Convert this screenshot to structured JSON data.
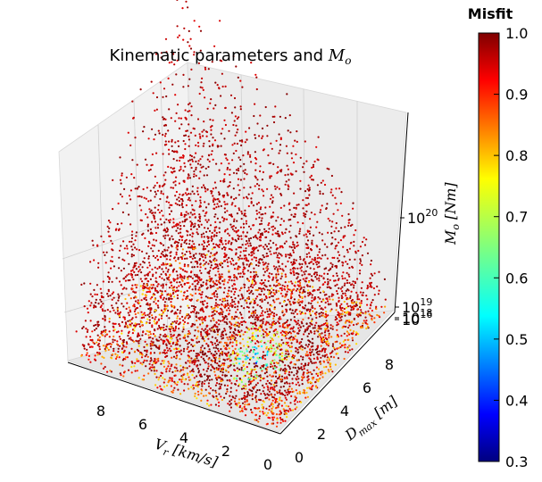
{
  "chart_data": {
    "type": "scatter",
    "projection": "3d",
    "title": {
      "prefix": "Kinematic parameters and ",
      "math_symbol": "M",
      "math_sub": "o"
    },
    "axes": {
      "x": {
        "label_symbol": "V",
        "label_sub": "r",
        "label_unit": "[km/s]",
        "ticks": [
          "8",
          "6",
          "4",
          "2",
          "0"
        ],
        "range": [
          0,
          10
        ]
      },
      "y": {
        "label_symbol": "D",
        "label_sub": "max",
        "label_unit": "[m]",
        "ticks": [
          "0",
          "2",
          "4",
          "6",
          "8"
        ],
        "range": [
          0,
          10
        ]
      },
      "z": {
        "label_symbol": "M",
        "label_sub": "o",
        "label_unit": "[Nm]",
        "ticks": [
          {
            "base": "10",
            "exp": "20"
          },
          {
            "base": "10",
            "exp": "19"
          },
          {
            "base": "10",
            "exp": "18"
          },
          {
            "base": "10",
            "exp": "16"
          }
        ],
        "scale": "log"
      }
    },
    "color_variable": "Misfit",
    "colorbar": {
      "title": "Misfit",
      "ticks": [
        "1.0",
        "0.9",
        "0.8",
        "0.7",
        "0.6",
        "0.5",
        "0.4",
        "0.3"
      ],
      "range": [
        0.3,
        1.0
      ],
      "colormap": "jet"
    },
    "grid": true,
    "point_count_approx": 40000,
    "trend": "Moment grows with Vr and Dmax; lowest misfit (blue/green) concentrated near Vr 2-4 km/s and Dmax 2-6 m at low moment; most points misfit about 1.0 (dark red)"
  }
}
